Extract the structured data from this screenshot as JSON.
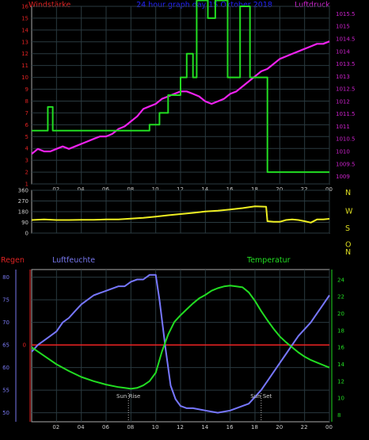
{
  "chart_data": [
    {
      "type": "line",
      "title": "24 hour graph day 15 Oktober 2018",
      "left_label": "Windstärke",
      "right_label": "Luftdruck",
      "x_ticks": [
        "02",
        "04",
        "06",
        "08",
        "10",
        "12",
        "14",
        "16",
        "18",
        "20",
        "22",
        "00"
      ],
      "y_left_ticks": [
        "1",
        "2",
        "3",
        "4",
        "5",
        "6",
        "7",
        "8",
        "9",
        "10",
        "11",
        "12",
        "13",
        "14",
        "15",
        "16"
      ],
      "y_right_ticks": [
        "1009",
        "1009.5",
        "1010",
        "1010.5",
        "1011",
        "1011.5",
        "1012",
        "1012.5",
        "1013",
        "1013.5",
        "1014",
        "1014.5",
        "1015",
        "1015.5"
      ],
      "y_left_range": [
        1,
        16
      ],
      "y_right_range": [
        1008.7,
        1015.8
      ],
      "colors": {
        "wind": "#22dd22",
        "pressure": "#ee22ee",
        "title": "#2222ff",
        "left_label": "#dd2222",
        "right_label": "#cc22cc"
      },
      "series": [
        {
          "key": "wind",
          "x": [
            0.0,
            1.3,
            1.3,
            1.7,
            1.7,
            9.5,
            9.5,
            10.3,
            10.3,
            11.0,
            11.0,
            12.0,
            12.0,
            12.5,
            12.5,
            13.0,
            13.0,
            13.3,
            13.3,
            13.8,
            13.8,
            14.2,
            14.2,
            14.8,
            14.8,
            15.8,
            15.8,
            16.8,
            16.8,
            17.6,
            17.6,
            19.0,
            19.0,
            24.0
          ],
          "y": [
            5.5,
            5.5,
            7.5,
            7.5,
            5.5,
            5.5,
            6,
            6,
            7,
            7,
            8.5,
            8.5,
            10,
            10,
            12,
            12,
            10,
            10,
            16.5,
            16.5,
            16.5,
            16.5,
            15,
            15,
            16.5,
            16.5,
            10,
            10,
            16,
            16,
            10,
            10,
            2,
            2
          ]
        },
        {
          "key": "pressure",
          "x": [
            0.0,
            0.5,
            1.0,
            1.5,
            2.0,
            2.5,
            3.0,
            3.5,
            4.0,
            4.5,
            5.0,
            5.5,
            6.0,
            6.5,
            7.0,
            7.5,
            8.0,
            8.5,
            9.0,
            9.5,
            10.0,
            10.5,
            11.0,
            11.5,
            12.0,
            12.5,
            13.0,
            13.5,
            14.0,
            14.5,
            15.0,
            15.5,
            16.0,
            16.5,
            17.0,
            17.5,
            18.0,
            18.5,
            19.0,
            19.5,
            20.0,
            20.5,
            21.0,
            21.5,
            22.0,
            22.5,
            23.0,
            23.5,
            24.0
          ],
          "y": [
            1009.9,
            1010.1,
            1010.0,
            1010.0,
            1010.1,
            1010.2,
            1010.1,
            1010.2,
            1010.3,
            1010.4,
            1010.5,
            1010.6,
            1010.6,
            1010.7,
            1010.9,
            1011.0,
            1011.2,
            1011.4,
            1011.7,
            1011.8,
            1011.9,
            1012.1,
            1012.2,
            1012.3,
            1012.4,
            1012.4,
            1012.3,
            1012.2,
            1012.0,
            1011.9,
            1012.0,
            1012.1,
            1012.3,
            1012.4,
            1012.6,
            1012.8,
            1013.0,
            1013.2,
            1013.3,
            1013.5,
            1013.7,
            1013.8,
            1013.9,
            1014.0,
            1014.1,
            1014.2,
            1014.3,
            1014.3,
            1014.4
          ]
        }
      ]
    },
    {
      "type": "line",
      "y_ticks": [
        "360",
        "270",
        "180",
        "90",
        "0"
      ],
      "compass_labels": [
        "N",
        "W",
        "S",
        "O",
        "N"
      ],
      "y_range": [
        0,
        360
      ],
      "colors": {
        "direction": "#eeee22",
        "compass": "#dddd22"
      },
      "series": [
        {
          "key": "direction",
          "x": [
            0.0,
            1.0,
            2.0,
            3.0,
            4.0,
            5.0,
            6.0,
            7.0,
            8.0,
            9.0,
            10.0,
            11.0,
            12.0,
            13.0,
            14.0,
            15.0,
            16.0,
            17.0,
            18.0,
            18.9,
            19.0,
            19.5,
            20.0,
            20.5,
            21.0,
            21.5,
            22.0,
            22.5,
            23.0,
            23.5,
            24.0
          ],
          "y": [
            110,
            115,
            110,
            110,
            112,
            112,
            115,
            115,
            122,
            128,
            138,
            150,
            160,
            170,
            182,
            188,
            198,
            210,
            225,
            222,
            100,
            95,
            95,
            110,
            115,
            110,
            100,
            88,
            115,
            115,
            120
          ]
        }
      ]
    },
    {
      "type": "line",
      "rain_label": "Regen",
      "humidity_label": "Luftfeuchte",
      "temp_label": "Temperatur",
      "x_ticks": [
        "02",
        "04",
        "06",
        "08",
        "10",
        "12",
        "14",
        "16",
        "18",
        "20",
        "22",
        "00"
      ],
      "rain_ticks": [
        "0"
      ],
      "humidity_ticks": [
        "50",
        "55",
        "60",
        "65",
        "70",
        "75",
        "80"
      ],
      "temp_ticks": [
        "8",
        "10",
        "12",
        "14",
        "16",
        "18",
        "20",
        "22",
        "24"
      ],
      "humidity_range": [
        48,
        81.7
      ],
      "temp_range": [
        7.2,
        25.2
      ],
      "sunrise_label": "Sun Rise",
      "sunset_label": "Sun Set",
      "sunrise_x": 7.8,
      "sunset_x": 18.5,
      "colors": {
        "rain": "#ee2222",
        "humidity": "#7777ff",
        "temp": "#22dd22",
        "rain_label": "#dd2222",
        "humidity_label": "#7777ee",
        "temp_label": "#22dd22",
        "sun_label": "#cccccc"
      },
      "series": [
        {
          "key": "rain",
          "x": [
            0,
            24
          ],
          "y": [
            0,
            0
          ]
        },
        {
          "key": "humidity",
          "x": [
            0.0,
            0.5,
            1.0,
            1.5,
            2.0,
            2.5,
            3.0,
            3.5,
            4.0,
            4.5,
            5.0,
            5.5,
            6.0,
            6.5,
            7.0,
            7.5,
            8.0,
            8.5,
            9.0,
            9.5,
            10.0,
            10.3,
            10.8,
            11.2,
            11.6,
            12.0,
            12.5,
            13.0,
            14.0,
            15.0,
            16.0,
            16.5,
            17.0,
            17.5,
            18.0,
            18.5,
            19.0,
            19.5,
            20.0,
            20.5,
            21.0,
            21.5,
            22.0,
            22.5,
            23.0,
            23.5,
            24.0
          ],
          "y": [
            63.5,
            65,
            66,
            67,
            68,
            70,
            71,
            72.5,
            74,
            75,
            76,
            76.5,
            77,
            77.5,
            78,
            78,
            79,
            79.5,
            79.5,
            80.5,
            80.5,
            75,
            64,
            56,
            53,
            51.5,
            51,
            51,
            50.5,
            50,
            50.5,
            51,
            51.5,
            52,
            53.5,
            55,
            57,
            59,
            61,
            63,
            65,
            67,
            68.5,
            70,
            72,
            74,
            76
          ]
        },
        {
          "key": "temp",
          "x": [
            0.0,
            1.0,
            2.0,
            3.0,
            4.0,
            5.0,
            6.0,
            7.0,
            7.5,
            8.0,
            8.5,
            9.0,
            9.5,
            10.0,
            10.5,
            11.0,
            11.5,
            12.0,
            12.5,
            13.0,
            13.5,
            14.0,
            14.5,
            15.0,
            15.5,
            16.0,
            16.5,
            17.0,
            17.5,
            18.0,
            18.5,
            19.0,
            19.5,
            20.0,
            20.5,
            21.0,
            21.5,
            22.0,
            22.5,
            23.0,
            23.5,
            24.0
          ],
          "y": [
            16,
            15,
            14,
            13.2,
            12.5,
            12,
            11.6,
            11.3,
            11.2,
            11.1,
            11.2,
            11.5,
            12,
            13,
            15.5,
            17.5,
            19,
            19.8,
            20.5,
            21.2,
            21.8,
            22.2,
            22.7,
            23.0,
            23.2,
            23.3,
            23.2,
            23.1,
            22.5,
            21.5,
            20.3,
            19.2,
            18.2,
            17.3,
            16.6,
            16.0,
            15.4,
            14.9,
            14.5,
            14.2,
            13.9,
            13.6
          ]
        }
      ]
    }
  ]
}
